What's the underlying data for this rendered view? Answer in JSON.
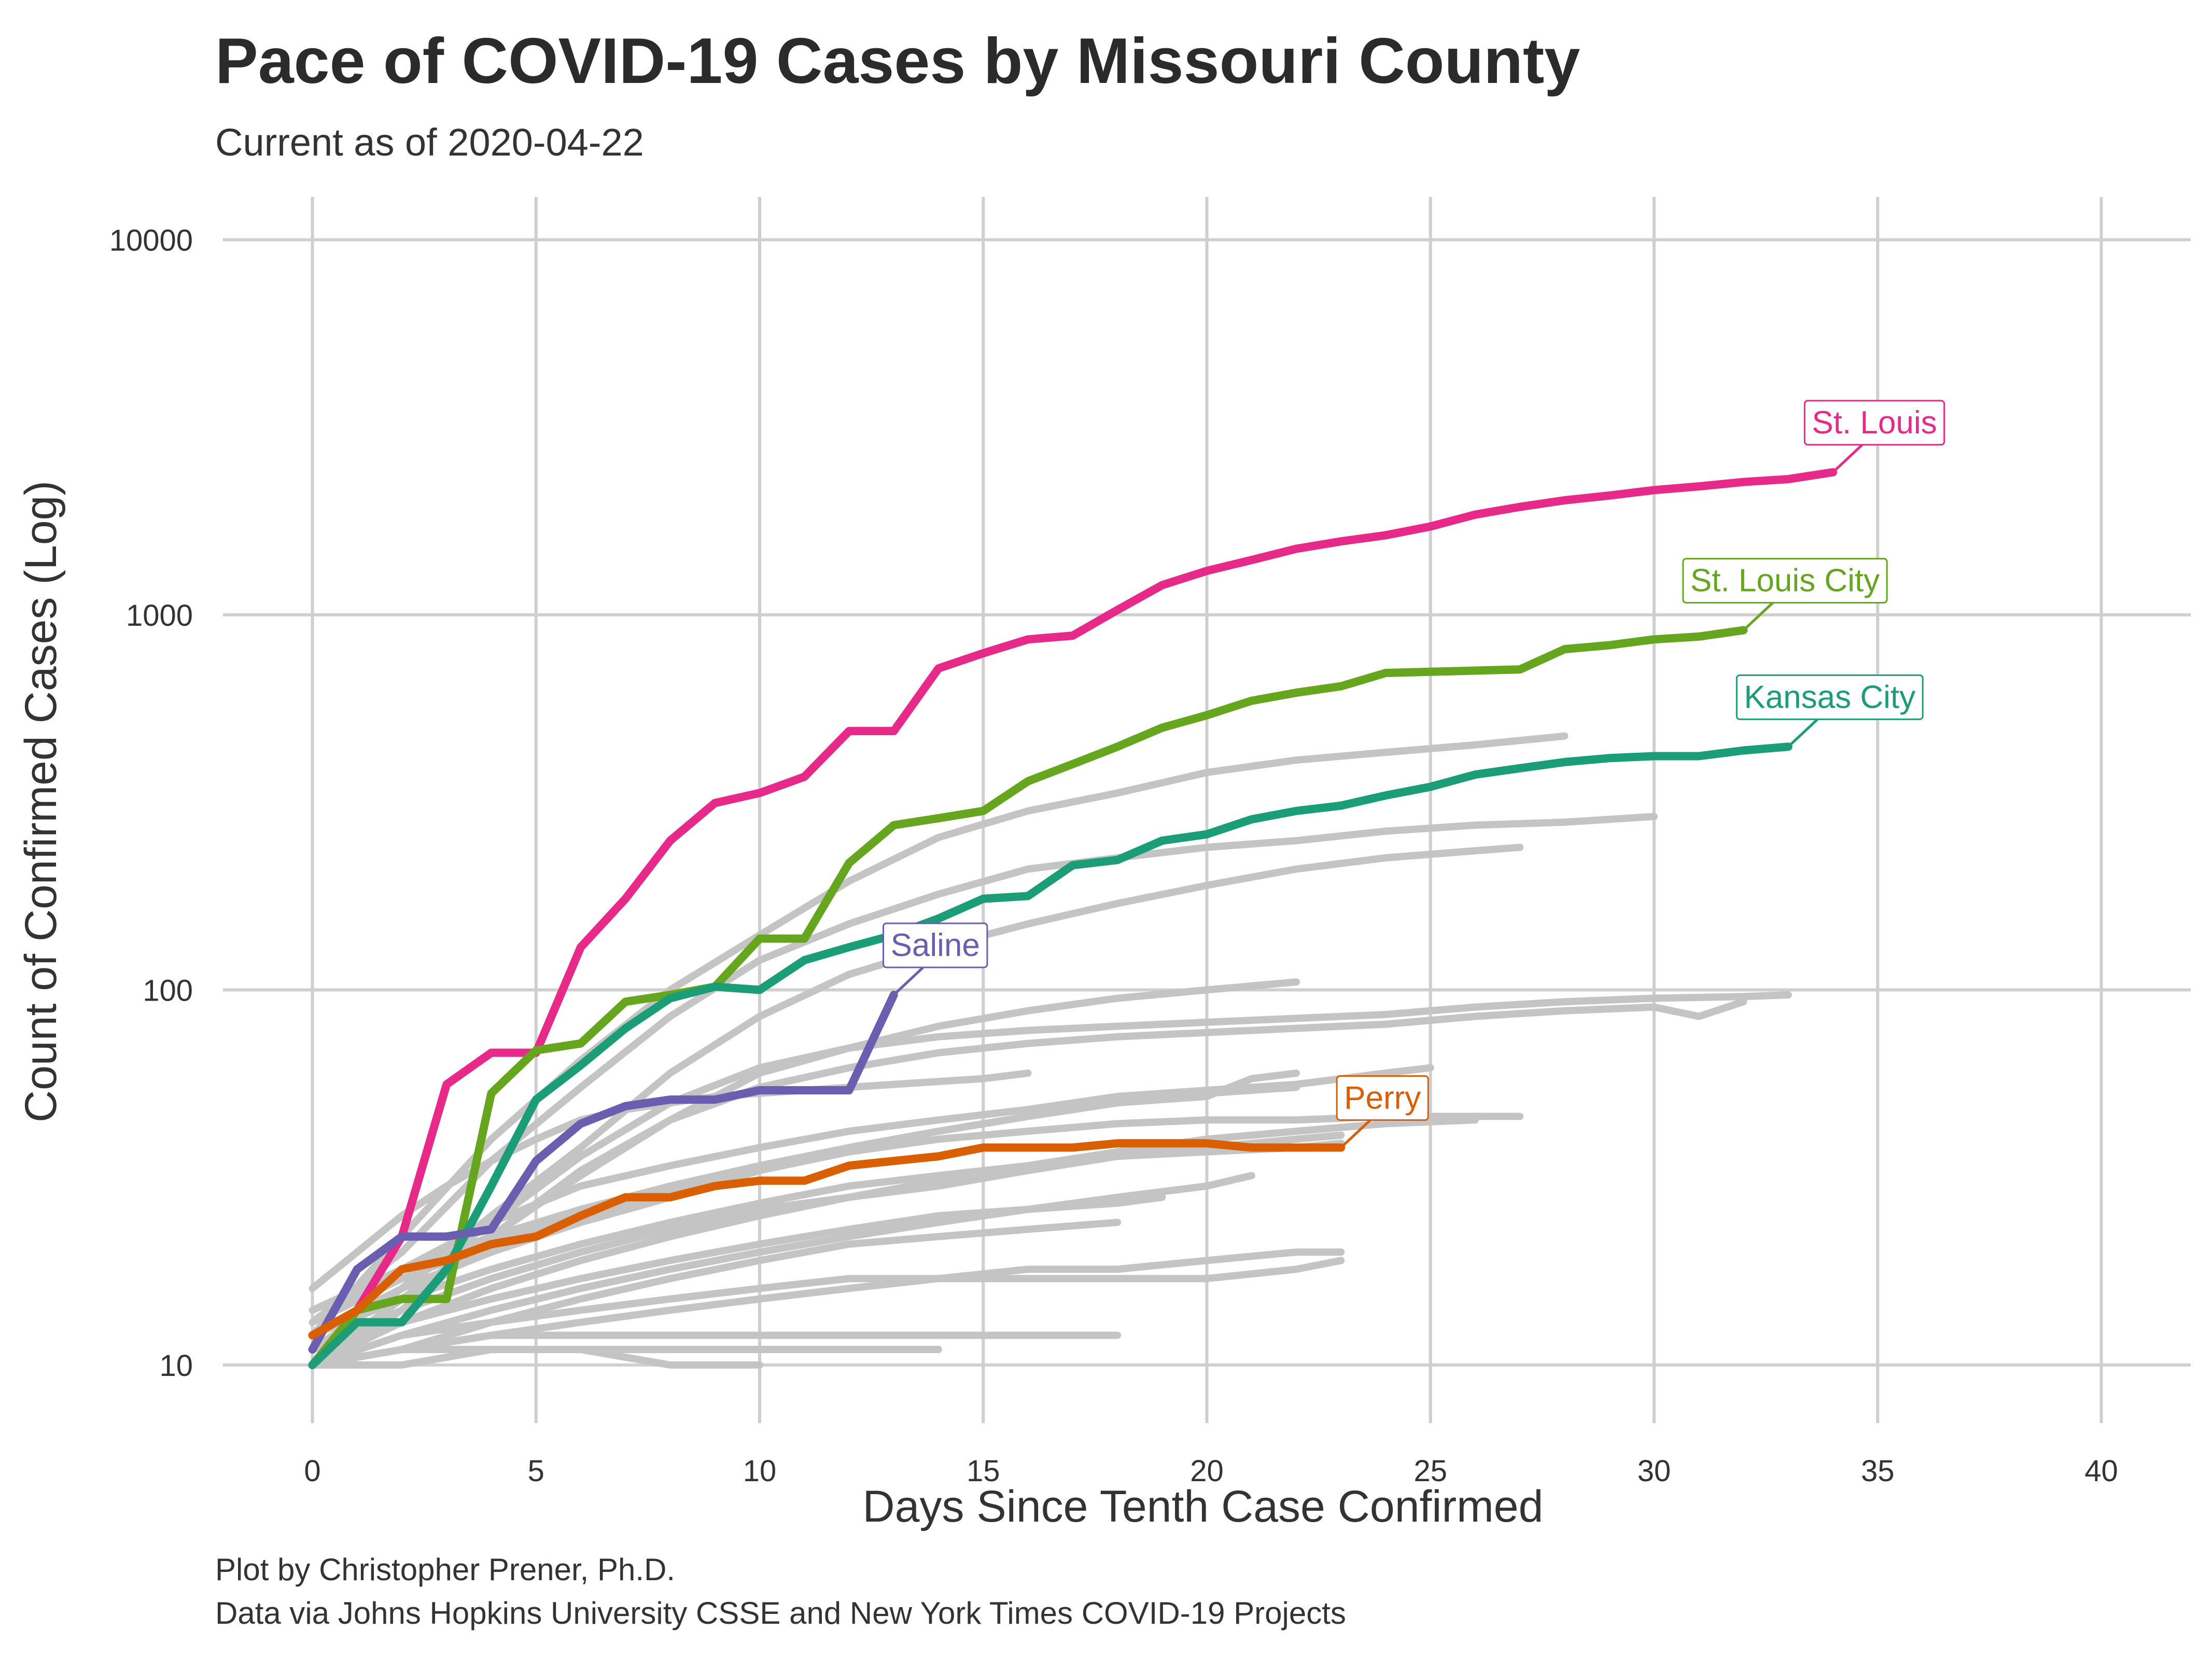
{
  "chart_data": {
    "type": "line",
    "title": "Pace of COVID-19 Cases by Missouri County",
    "subtitle": "Current as of 2020-04-22",
    "xlabel": "Days Since Tenth Case Confirmed",
    "ylabel": "Count of Confirmed Cases (Log)",
    "caption": [
      "Plot by Christopher Prener, Ph.D.",
      "Data via Johns Hopkins University CSSE and New York Times COVID-19 Projects"
    ],
    "x_scale": "linear",
    "y_scale": "log",
    "xlim": [
      -2,
      42
    ],
    "ylim": [
      7,
      13000
    ],
    "x_ticks": [
      0,
      5,
      10,
      15,
      20,
      25,
      30,
      35,
      40
    ],
    "y_ticks": [
      10,
      100,
      1000,
      10000
    ],
    "x_tick_labels": [
      "0",
      "5",
      "10",
      "15",
      "20",
      "25",
      "30",
      "35",
      "40"
    ],
    "y_tick_labels": [
      "10",
      "100",
      "1000",
      "10000"
    ],
    "grid": true,
    "legend": "none",
    "colors": {
      "background_series": "#c4c4c4",
      "St. Louis": "#e7298a",
      "St. Louis City": "#66a61e",
      "Kansas City": "#1b9e77",
      "Saline": "#6a5eb0",
      "Perry": "#d95f02",
      "grid": "#cfcfcf"
    },
    "series": [
      {
        "name": "St. Louis",
        "highlight": true,
        "x": [
          0,
          1,
          2,
          3,
          4,
          5,
          6,
          7,
          8,
          9,
          10,
          11,
          12,
          13,
          14,
          15,
          16,
          17,
          18,
          19,
          20,
          21,
          22,
          23,
          24,
          25,
          26,
          27,
          28,
          29,
          30,
          31,
          32,
          33,
          34
        ],
        "y": [
          10,
          14,
          22,
          56,
          68,
          68,
          130,
          175,
          250,
          315,
          335,
          370,
          490,
          490,
          720,
          790,
          860,
          880,
          1030,
          1200,
          1310,
          1400,
          1500,
          1570,
          1630,
          1720,
          1850,
          1940,
          2020,
          2080,
          2150,
          2200,
          2260,
          2300,
          2400
        ]
      },
      {
        "name": "St. Louis City",
        "highlight": true,
        "x": [
          0,
          1,
          2,
          3,
          4,
          5,
          6,
          7,
          8,
          9,
          10,
          11,
          12,
          13,
          14,
          15,
          16,
          17,
          18,
          19,
          20,
          21,
          22,
          23,
          24,
          25,
          26,
          27,
          28,
          29,
          30,
          31,
          32
        ],
        "y": [
          10,
          14,
          15,
          15,
          53,
          69,
          72,
          93,
          97,
          102,
          137,
          137,
          218,
          275,
          287,
          300,
          360,
          400,
          445,
          500,
          540,
          590,
          620,
          645,
          700,
          705,
          710,
          715,
          810,
          830,
          860,
          875,
          910
        ]
      },
      {
        "name": "Kansas City",
        "highlight": true,
        "x": [
          0,
          1,
          2,
          3,
          4,
          5,
          6,
          7,
          8,
          9,
          10,
          11,
          12,
          13,
          14,
          15,
          16,
          17,
          18,
          19,
          20,
          21,
          22,
          23,
          24,
          25,
          26,
          27,
          28,
          29,
          30,
          31,
          32,
          33
        ],
        "y": [
          10,
          13,
          13,
          18,
          30,
          51,
          63,
          79,
          95,
          102,
          100,
          120,
          130,
          140,
          155,
          175,
          178,
          215,
          222,
          250,
          260,
          285,
          300,
          310,
          330,
          348,
          375,
          390,
          405,
          415,
          420,
          420,
          435,
          445
        ]
      },
      {
        "name": "Saline",
        "highlight": true,
        "x": [
          0,
          1,
          2,
          3,
          4,
          5,
          6,
          7,
          8,
          9,
          10,
          11,
          12,
          13
        ],
        "y": [
          11,
          18,
          22,
          22,
          23,
          35,
          44,
          49,
          51,
          51,
          54,
          54,
          54,
          97
        ]
      },
      {
        "name": "Perry",
        "highlight": true,
        "x": [
          0,
          1,
          2,
          3,
          4,
          5,
          6,
          7,
          8,
          9,
          10,
          11,
          12,
          13,
          14,
          15,
          16,
          17,
          18,
          19,
          20,
          21,
          22,
          23
        ],
        "y": [
          12,
          14,
          18,
          19,
          21,
          22,
          25,
          28,
          28,
          30,
          31,
          31,
          34,
          35,
          36,
          38,
          38,
          38,
          39,
          39,
          39,
          38,
          38,
          38
        ]
      },
      {
        "x": [
          0,
          2,
          4,
          6,
          8,
          10,
          12,
          14,
          16,
          18,
          20,
          22,
          24,
          26,
          28
        ],
        "y": [
          12,
          22,
          40,
          65,
          100,
          140,
          195,
          255,
          300,
          335,
          380,
          410,
          430,
          450,
          475
        ]
      },
      {
        "x": [
          0,
          2,
          4,
          6,
          8,
          10,
          12,
          14,
          16,
          18,
          20,
          22,
          24,
          26,
          28,
          30
        ],
        "y": [
          13,
          20,
          35,
          55,
          85,
          120,
          150,
          180,
          210,
          225,
          240,
          250,
          265,
          275,
          280,
          290
        ]
      },
      {
        "x": [
          0,
          2,
          4,
          6,
          8,
          10,
          12,
          14,
          16,
          18,
          20,
          22,
          24,
          26,
          27
        ],
        "y": [
          11,
          16,
          25,
          38,
          60,
          85,
          110,
          130,
          150,
          170,
          190,
          210,
          225,
          235,
          240
        ]
      },
      {
        "x": [
          0,
          2,
          4,
          6,
          8,
          10,
          12,
          14,
          16,
          18,
          20,
          22
        ],
        "y": [
          10,
          15,
          22,
          32,
          45,
          60,
          70,
          80,
          88,
          95,
          100,
          105
        ]
      },
      {
        "x": [
          0,
          2,
          4,
          6,
          8,
          10,
          12,
          14,
          16,
          18,
          20,
          22,
          24,
          26,
          28,
          30,
          31,
          32
        ],
        "y": [
          10,
          14,
          22,
          33,
          45,
          55,
          62,
          68,
          72,
          75,
          77,
          79,
          81,
          85,
          88,
          90,
          85,
          93
        ]
      },
      {
        "x": [
          0,
          2,
          4,
          6,
          8,
          10,
          12,
          14,
          16,
          18,
          20,
          22,
          24,
          26,
          28,
          30,
          32,
          33
        ],
        "y": [
          11,
          16,
          24,
          36,
          50,
          62,
          70,
          75,
          78,
          80,
          82,
          84,
          86,
          90,
          93,
          95,
          96,
          97
        ]
      },
      {
        "x": [
          0,
          1,
          2,
          3,
          4,
          5,
          6,
          7,
          8,
          9,
          10,
          11,
          12,
          13,
          14,
          15,
          16
        ],
        "y": [
          16,
          20,
          25,
          30,
          35,
          40,
          45,
          48,
          50,
          52,
          53,
          54,
          55,
          56,
          57,
          58,
          60
        ]
      },
      {
        "x": [
          0,
          2,
          4,
          6,
          8,
          10,
          12,
          14,
          16,
          18,
          20,
          22,
          24,
          25
        ],
        "y": [
          13,
          18,
          24,
          30,
          34,
          38,
          42,
          45,
          48,
          52,
          54,
          56,
          60,
          62
        ]
      },
      {
        "x": [
          0,
          2,
          4,
          6,
          8,
          10,
          12,
          14,
          16,
          18,
          20,
          22
        ],
        "y": [
          12,
          16,
          20,
          24,
          28,
          33,
          38,
          42,
          46,
          50,
          53,
          55
        ]
      },
      {
        "x": [
          0,
          2,
          4,
          6,
          8,
          10,
          12,
          14,
          16,
          18,
          20,
          22,
          24,
          26
        ],
        "y": [
          10,
          13,
          16,
          19,
          22,
          25,
          28,
          31,
          34,
          37,
          40,
          42,
          44,
          45
        ]
      },
      {
        "x": [
          0,
          2,
          4,
          6,
          8,
          10,
          12,
          14,
          16,
          18,
          20,
          22,
          23
        ],
        "y": [
          11,
          14,
          17,
          20,
          23,
          26,
          28,
          30,
          33,
          36,
          38,
          40,
          41
        ]
      },
      {
        "x": [
          0,
          2,
          4,
          6,
          8,
          10,
          12,
          14,
          16,
          18,
          20,
          22,
          23
        ],
        "y": [
          12,
          15,
          18,
          21,
          24,
          27,
          30,
          32,
          34,
          36,
          37,
          38,
          39
        ]
      },
      {
        "x": [
          0,
          2,
          4,
          6,
          8,
          10,
          12,
          14,
          16,
          18,
          20,
          21
        ],
        "y": [
          10,
          12,
          14,
          16,
          18,
          20,
          22,
          24,
          26,
          28,
          30,
          32
        ]
      },
      {
        "x": [
          0,
          2,
          4,
          6,
          8,
          10,
          12,
          14,
          16,
          18,
          19
        ],
        "y": [
          11,
          13,
          15,
          17,
          19,
          21,
          23,
          25,
          26,
          27,
          28
        ]
      },
      {
        "x": [
          0,
          2,
          4,
          6,
          8,
          10,
          12,
          14,
          16,
          18
        ],
        "y": [
          10,
          12,
          13,
          15,
          17,
          19,
          21,
          22,
          23,
          24
        ]
      },
      {
        "x": [
          0,
          2,
          4,
          6,
          8,
          10,
          12,
          14,
          16,
          18,
          20,
          22,
          23
        ],
        "y": [
          10,
          11,
          13,
          14,
          15,
          16,
          17,
          17,
          18,
          18,
          19,
          20,
          20
        ]
      },
      {
        "x": [
          0,
          2,
          4,
          6,
          8,
          10,
          12,
          14,
          16,
          18,
          20,
          22,
          23
        ],
        "y": [
          10,
          11,
          12,
          13,
          14,
          15,
          16,
          17,
          17,
          17,
          17,
          18,
          19
        ]
      },
      {
        "x": [
          0,
          2,
          4,
          6,
          8,
          10,
          12,
          14
        ],
        "y": [
          10,
          11,
          11,
          11,
          11,
          11,
          11,
          11
        ]
      },
      {
        "x": [
          0,
          2,
          4,
          6,
          8,
          10,
          12,
          14,
          16,
          18
        ],
        "y": [
          10,
          11,
          12,
          12,
          12,
          12,
          12,
          12,
          12,
          12
        ]
      },
      {
        "x": [
          0,
          2,
          4,
          6,
          8,
          9,
          10
        ],
        "y": [
          10,
          10,
          11,
          11,
          10,
          10,
          10
        ]
      },
      {
        "x": [
          0,
          2,
          4,
          6,
          8,
          10,
          12,
          14,
          16,
          18,
          20,
          21,
          22
        ],
        "y": [
          14,
          18,
          22,
          26,
          30,
          34,
          38,
          42,
          46,
          50,
          52,
          58,
          60
        ]
      },
      {
        "x": [
          0,
          2,
          4,
          6,
          8,
          10,
          12,
          14,
          16,
          18,
          20,
          22,
          24,
          26,
          27
        ],
        "y": [
          13,
          17,
          21,
          25,
          29,
          33,
          37,
          40,
          42,
          44,
          45,
          45,
          46,
          46,
          46
        ]
      }
    ],
    "annotations": [
      {
        "text": "St. Louis",
        "series": "St. Louis",
        "x": 34,
        "y": 2400
      },
      {
        "text": "St. Louis City",
        "series": "St. Louis City",
        "x": 32,
        "y": 910
      },
      {
        "text": "Kansas City",
        "series": "Kansas City",
        "x": 33,
        "y": 445
      },
      {
        "text": "Saline",
        "series": "Saline",
        "x": 13,
        "y": 97
      },
      {
        "text": "Perry",
        "series": "Perry",
        "x": 23,
        "y": 38
      }
    ]
  }
}
